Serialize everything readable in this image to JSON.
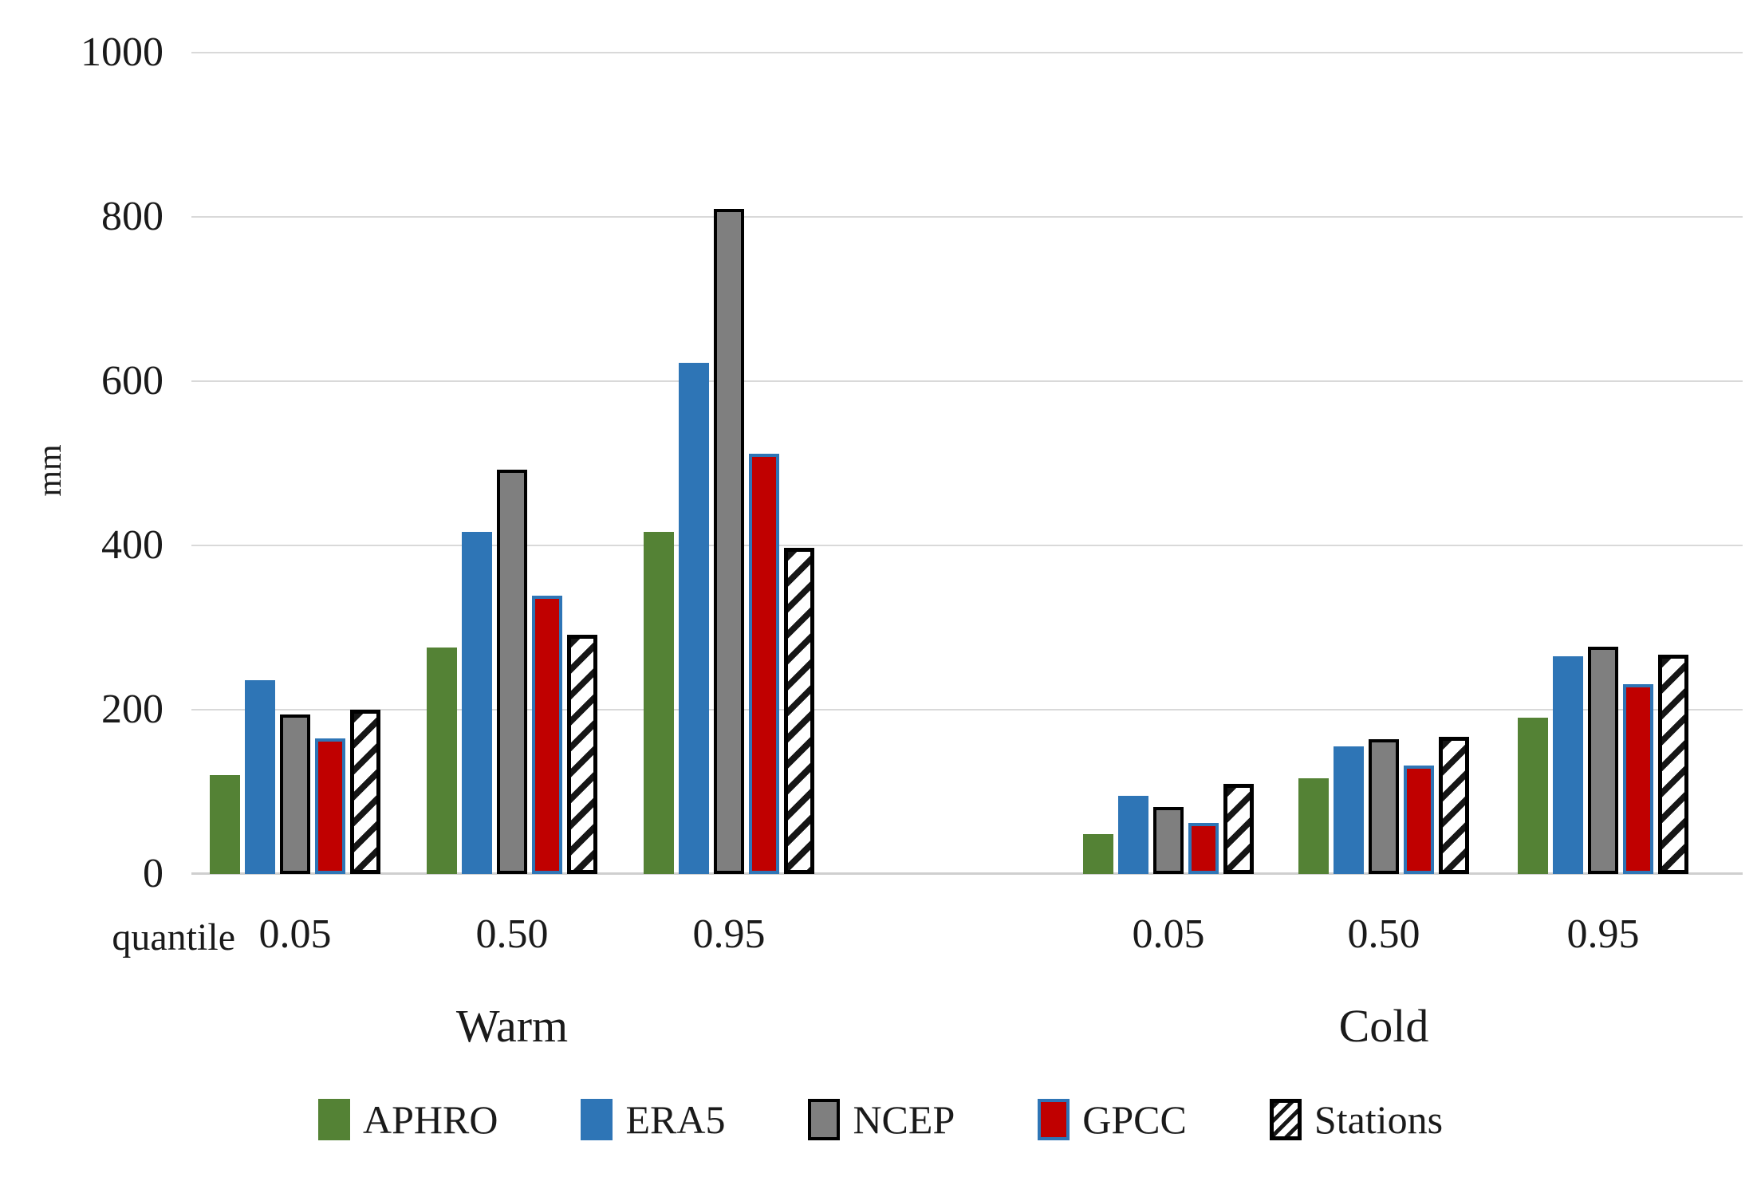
{
  "chart_data": {
    "type": "bar",
    "title": "",
    "ylabel": "mm",
    "xlabel": "quantile",
    "ylim": [
      0,
      1000
    ],
    "yticks": [
      0,
      200,
      400,
      600,
      800,
      1000
    ],
    "grid": "horizontal",
    "legend_position": "bottom",
    "series": [
      {
        "name": "APHRO",
        "fill": "#548235",
        "border": "none",
        "pattern": "solid"
      },
      {
        "name": "ERA5",
        "fill": "#2E75B6",
        "border": "none",
        "pattern": "solid"
      },
      {
        "name": "NCEP",
        "fill": "#7F7F7F",
        "border": "#000000",
        "pattern": "solid"
      },
      {
        "name": "GPCC",
        "fill": "#C00000",
        "border": "#2E75B6",
        "pattern": "solid"
      },
      {
        "name": "Stations",
        "fill": "#FFFFFF",
        "border": "#000000",
        "pattern": "hatch"
      }
    ],
    "panels": [
      {
        "label": "Warm",
        "categories": [
          "0.05",
          "0.50",
          "0.95"
        ],
        "values": {
          "APHRO": [
            120,
            276,
            417
          ],
          "ERA5": [
            236,
            417,
            622
          ],
          "NCEP": [
            194,
            492,
            810
          ],
          "GPCC": [
            165,
            339,
            512
          ],
          "Stations": [
            200,
            291,
            397
          ]
        }
      },
      {
        "label": "Cold",
        "categories": [
          "0.05",
          "0.50",
          "0.95"
        ],
        "values": {
          "APHRO": [
            49,
            117,
            190
          ],
          "ERA5": [
            95,
            155,
            265
          ],
          "NCEP": [
            82,
            164,
            277
          ],
          "GPCC": [
            62,
            132,
            231
          ],
          "Stations": [
            110,
            167,
            267
          ]
        }
      }
    ]
  }
}
